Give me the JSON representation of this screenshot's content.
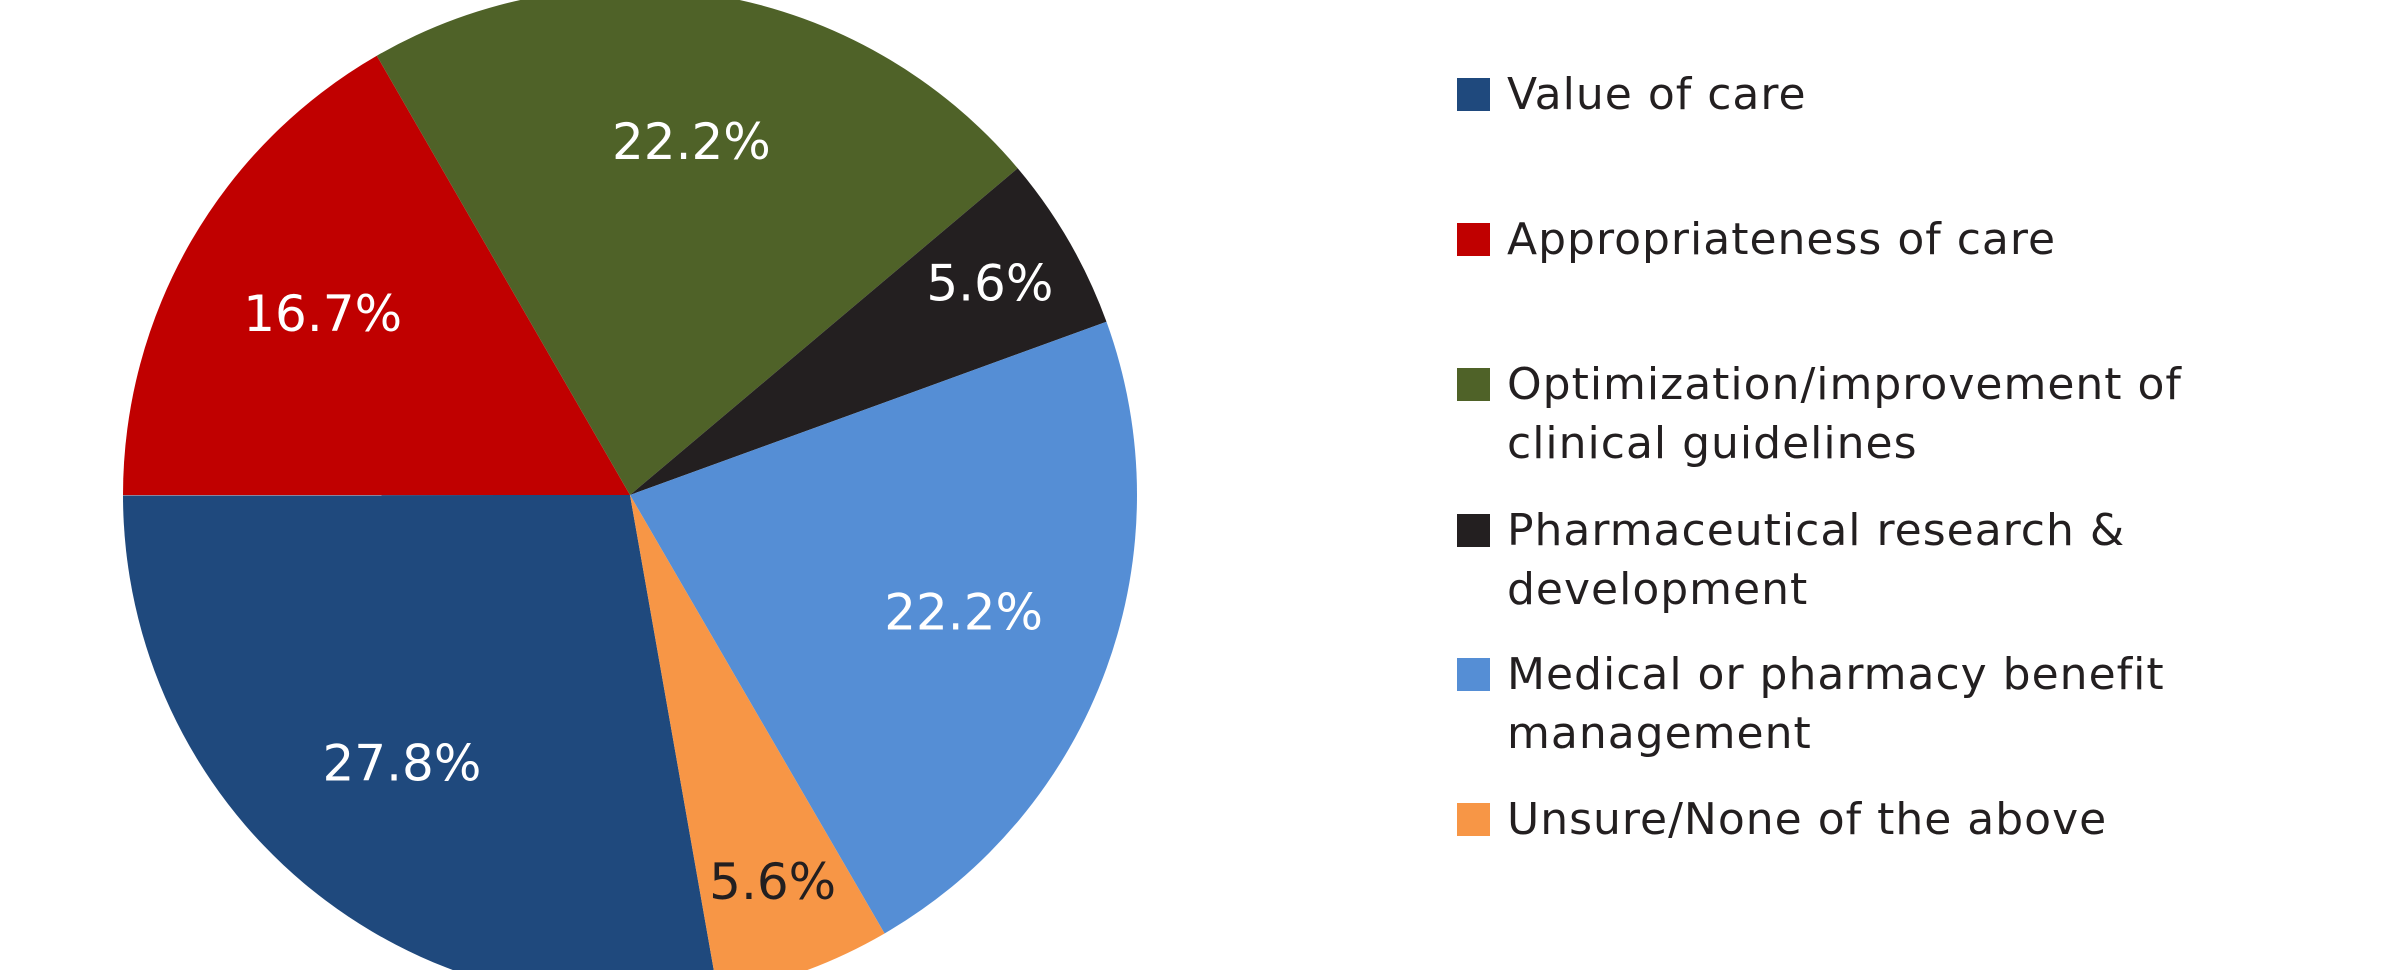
{
  "chart_data": {
    "type": "pie",
    "categories": [
      "Value of care",
      "Appropriateness of care",
      "Optimization/improvement of clinical guidelines",
      "Pharmaceutical research & development",
      "Medical or pharmacy benefit management",
      "Unsure/None of the above"
    ],
    "values": [
      27.8,
      16.7,
      22.2,
      5.6,
      22.2,
      5.6
    ],
    "value_labels": [
      "27.8%",
      "16.7%",
      "22.2%",
      "5.6%",
      "22.2%",
      "5.6%"
    ],
    "colors": [
      "#1f497d",
      "#c00000",
      "#4f6228",
      "#231f20",
      "#558ed5",
      "#f79646"
    ],
    "legend": "right"
  }
}
